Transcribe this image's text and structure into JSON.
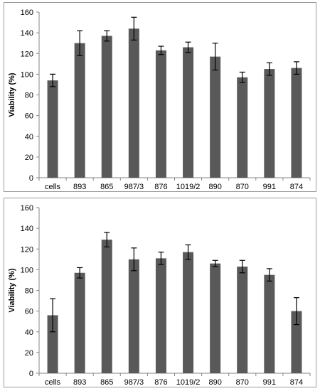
{
  "chart_data": [
    {
      "type": "bar",
      "ylabel": "Viability (%)",
      "xlabel": "",
      "ylim": [
        0,
        160
      ],
      "yticks": [
        0,
        20,
        40,
        60,
        80,
        100,
        120,
        140,
        160
      ],
      "categories": [
        "cells",
        "893",
        "865",
        "987/3",
        "876",
        "1019/2",
        "890",
        "870",
        "991",
        "874"
      ],
      "values": [
        94,
        130,
        137,
        144,
        123,
        126,
        117,
        97,
        105,
        106
      ],
      "errors": [
        6,
        12,
        5,
        11,
        4,
        5,
        13,
        5,
        6,
        6
      ],
      "bar_color": "#595959",
      "grid": false
    },
    {
      "type": "bar",
      "ylabel": "Viability (%)",
      "xlabel": "",
      "ylim": [
        0,
        160
      ],
      "yticks": [
        0,
        20,
        40,
        60,
        80,
        100,
        120,
        140,
        160
      ],
      "categories": [
        "cells",
        "893",
        "865",
        "987/3",
        "876",
        "1019/2",
        "890",
        "870",
        "991",
        "874"
      ],
      "values": [
        56,
        97,
        129,
        110,
        111,
        117,
        106,
        103,
        95,
        60
      ],
      "errors": [
        16,
        5,
        7,
        11,
        6,
        7,
        3,
        6,
        6,
        13
      ],
      "bar_color": "#595959",
      "grid": false
    }
  ]
}
